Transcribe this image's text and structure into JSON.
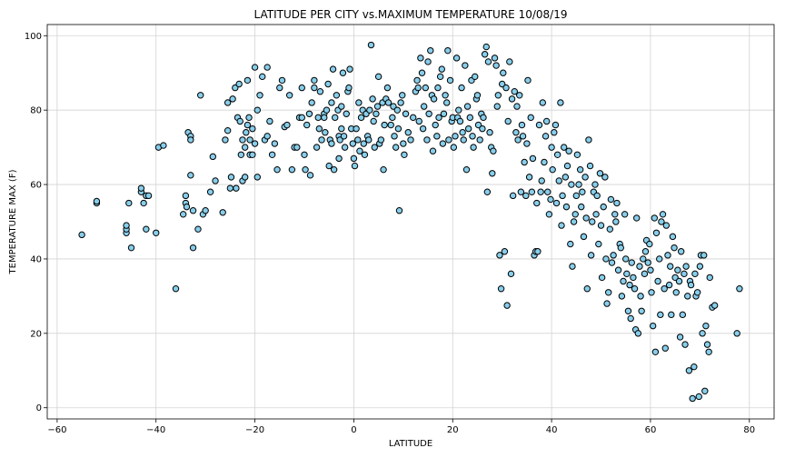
{
  "chart_data": {
    "type": "scatter",
    "title": "LATITUDE PER CITY vs.MAXIMUM TEMPERATURE 10/08/19",
    "xlabel": "LATITUDE",
    "ylabel": "TEMPERATURE MAX (F)",
    "xlim": [
      -62,
      85
    ],
    "ylim": [
      -3,
      103
    ],
    "xticks": [
      "−60",
      "−40",
      "−20",
      "0",
      "20",
      "40",
      "60",
      "80"
    ],
    "xtick_values": [
      -60,
      -40,
      -20,
      0,
      20,
      40,
      60,
      80
    ],
    "yticks": [
      "0",
      "20",
      "40",
      "60",
      "80",
      "100"
    ],
    "ytick_values": [
      0,
      20,
      40,
      60,
      80,
      100
    ],
    "grid": true,
    "marker_color": "#87CEEB",
    "marker_edge": "#000000",
    "points": [
      [
        -55,
        46.5
      ],
      [
        -52,
        55
      ],
      [
        -52,
        55.5
      ],
      [
        -46,
        47
      ],
      [
        -46,
        48
      ],
      [
        -46,
        49
      ],
      [
        -45.5,
        55
      ],
      [
        -45,
        43
      ],
      [
        -43,
        58
      ],
      [
        -43,
        59
      ],
      [
        -42.5,
        55
      ],
      [
        -42,
        48
      ],
      [
        -42,
        57
      ],
      [
        -41.5,
        57
      ],
      [
        -40,
        47
      ],
      [
        -39.5,
        70
      ],
      [
        -38.5,
        70.5
      ],
      [
        -36,
        32
      ],
      [
        -34.5,
        52
      ],
      [
        -34,
        57
      ],
      [
        -34,
        55
      ],
      [
        -33.8,
        54
      ],
      [
        -33.5,
        74
      ],
      [
        -33,
        73
      ],
      [
        -33,
        62.5
      ],
      [
        -33,
        72
      ],
      [
        -32.5,
        53
      ],
      [
        -32.5,
        43
      ],
      [
        -31.5,
        48
      ],
      [
        -31,
        84
      ],
      [
        -30.5,
        52
      ],
      [
        -30,
        53
      ],
      [
        -29,
        58
      ],
      [
        -28.5,
        67.5
      ],
      [
        -28,
        61
      ],
      [
        -26.5,
        52.5
      ],
      [
        -26,
        72
      ],
      [
        -25.5,
        74.5
      ],
      [
        -25.5,
        82
      ],
      [
        -25,
        59
      ],
      [
        -24.8,
        62
      ],
      [
        -24.5,
        83
      ],
      [
        -24,
        86
      ],
      [
        -23.8,
        59
      ],
      [
        -23.5,
        78
      ],
      [
        -23.2,
        87
      ],
      [
        -23,
        77
      ],
      [
        -22.8,
        68
      ],
      [
        -22.5,
        72
      ],
      [
        -22.5,
        61
      ],
      [
        -22,
        62
      ],
      [
        -22,
        70
      ],
      [
        -21.8,
        74
      ],
      [
        -21.5,
        76
      ],
      [
        -21.5,
        88
      ],
      [
        -21.2,
        78
      ],
      [
        -21,
        72
      ],
      [
        -21,
        68
      ],
      [
        -20.5,
        68
      ],
      [
        -20.5,
        75
      ],
      [
        -20,
        71
      ],
      [
        -20,
        91.5
      ],
      [
        -19.5,
        62
      ],
      [
        -19.5,
        80
      ],
      [
        -19,
        84
      ],
      [
        -18.5,
        89
      ],
      [
        -18,
        72
      ],
      [
        -17.5,
        73
      ],
      [
        -17.5,
        91.5
      ],
      [
        -17,
        77
      ],
      [
        -16.5,
        68
      ],
      [
        -16,
        71
      ],
      [
        -15.5,
        64
      ],
      [
        -15,
        86
      ],
      [
        -14.5,
        88
      ],
      [
        -14,
        75.5
      ],
      [
        -13.5,
        76
      ],
      [
        -13,
        84
      ],
      [
        -12.5,
        64
      ],
      [
        -12,
        70
      ],
      [
        -11.5,
        70
      ],
      [
        -11,
        78
      ],
      [
        -10.5,
        78
      ],
      [
        -10.5,
        86
      ],
      [
        -10,
        68
      ],
      [
        -9.8,
        64
      ],
      [
        -9.5,
        76
      ],
      [
        -9,
        79
      ],
      [
        -8.8,
        62.5
      ],
      [
        -8.5,
        82
      ],
      [
        -8,
        86
      ],
      [
        -8,
        88
      ],
      [
        -7.5,
        70
      ],
      [
        -7.2,
        78
      ],
      [
        -7,
        75
      ],
      [
        -6.8,
        85
      ],
      [
        -6.5,
        72
      ],
      [
        -6,
        79
      ],
      [
        -6,
        78
      ],
      [
        -5.8,
        74
      ],
      [
        -5.5,
        80
      ],
      [
        -5.2,
        87
      ],
      [
        -5,
        65
      ],
      [
        -4.8,
        72
      ],
      [
        -4.5,
        71
      ],
      [
        -4.5,
        82
      ],
      [
        -4.2,
        91
      ],
      [
        -4,
        64
      ],
      [
        -3.8,
        78
      ],
      [
        -3.5,
        84
      ],
      [
        -3.2,
        80
      ],
      [
        -3,
        73
      ],
      [
        -3,
        67
      ],
      [
        -2.8,
        72
      ],
      [
        -2.5,
        75
      ],
      [
        -2.5,
        81
      ],
      [
        -2.2,
        90
      ],
      [
        -2,
        73
      ],
      [
        -1.8,
        70
      ],
      [
        -1.5,
        79
      ],
      [
        -1.2,
        85
      ],
      [
        -1,
        86
      ],
      [
        -0.8,
        91
      ],
      [
        -0.5,
        75
      ],
      [
        -0.2,
        71
      ],
      [
        0,
        67
      ],
      [
        0.2,
        65
      ],
      [
        0.5,
        75
      ],
      [
        0.8,
        72
      ],
      [
        1,
        82
      ],
      [
        1.2,
        69
      ],
      [
        1.5,
        78
      ],
      [
        1.8,
        80
      ],
      [
        2,
        71
      ],
      [
        2.2,
        68
      ],
      [
        2.5,
        79
      ],
      [
        2.8,
        73
      ],
      [
        3,
        72
      ],
      [
        3.2,
        80
      ],
      [
        3.5,
        97.5
      ],
      [
        3.8,
        83
      ],
      [
        4,
        77
      ],
      [
        4.2,
        70
      ],
      [
        4.5,
        79
      ],
      [
        4.8,
        81
      ],
      [
        5,
        89
      ],
      [
        5.2,
        71
      ],
      [
        5.5,
        72
      ],
      [
        5.8,
        82
      ],
      [
        6,
        64
      ],
      [
        6.2,
        76
      ],
      [
        6.5,
        83
      ],
      [
        6.8,
        86
      ],
      [
        7,
        82
      ],
      [
        7.5,
        76
      ],
      [
        7.8,
        78
      ],
      [
        8,
        81
      ],
      [
        8.2,
        73
      ],
      [
        8.5,
        70
      ],
      [
        8.8,
        80
      ],
      [
        9,
        75
      ],
      [
        9.2,
        53
      ],
      [
        9.5,
        82
      ],
      [
        9.8,
        84
      ],
      [
        10,
        71
      ],
      [
        10.2,
        68
      ],
      [
        10.5,
        79
      ],
      [
        11,
        74
      ],
      [
        11.5,
        72
      ],
      [
        12,
        78
      ],
      [
        12.5,
        85
      ],
      [
        12.8,
        88
      ],
      [
        13,
        86
      ],
      [
        13.2,
        77
      ],
      [
        13.5,
        94
      ],
      [
        13.8,
        90
      ],
      [
        14,
        75
      ],
      [
        14.2,
        81
      ],
      [
        14.5,
        86
      ],
      [
        14.8,
        72
      ],
      [
        15,
        93
      ],
      [
        15.2,
        79
      ],
      [
        15.5,
        96
      ],
      [
        15.8,
        84
      ],
      [
        16,
        69
      ],
      [
        16.2,
        83
      ],
      [
        16.5,
        76
      ],
      [
        16.8,
        73
      ],
      [
        17,
        86
      ],
      [
        17.2,
        78
      ],
      [
        17.5,
        89
      ],
      [
        17.8,
        91
      ],
      [
        18,
        71
      ],
      [
        18.2,
        79
      ],
      [
        18.5,
        84
      ],
      [
        18.8,
        82
      ],
      [
        19,
        96
      ],
      [
        19.2,
        72
      ],
      [
        19.5,
        88
      ],
      [
        19.8,
        77
      ],
      [
        20,
        78
      ],
      [
        20.2,
        70
      ],
      [
        20.5,
        73
      ],
      [
        20.8,
        94
      ],
      [
        21,
        78
      ],
      [
        21.2,
        80
      ],
      [
        21.5,
        77
      ],
      [
        21.8,
        86
      ],
      [
        22,
        74
      ],
      [
        22.2,
        72
      ],
      [
        22.5,
        92
      ],
      [
        22.8,
        64
      ],
      [
        23,
        81
      ],
      [
        23.2,
        75
      ],
      [
        23.5,
        78
      ],
      [
        23.8,
        88
      ],
      [
        24,
        73
      ],
      [
        24.2,
        70
      ],
      [
        24.5,
        89
      ],
      [
        24.8,
        83
      ],
      [
        25,
        84
      ],
      [
        25.2,
        76
      ],
      [
        25.5,
        72
      ],
      [
        25.8,
        79
      ],
      [
        26,
        75
      ],
      [
        26.2,
        78
      ],
      [
        26.5,
        95
      ],
      [
        26.8,
        97
      ],
      [
        27,
        58
      ],
      [
        27.2,
        93
      ],
      [
        27.5,
        74
      ],
      [
        27.8,
        70
      ],
      [
        28,
        63
      ],
      [
        28.2,
        69
      ],
      [
        28.5,
        94
      ],
      [
        28.8,
        92
      ],
      [
        29,
        81
      ],
      [
        29.2,
        84
      ],
      [
        29.5,
        41
      ],
      [
        29.8,
        32
      ],
      [
        30,
        87
      ],
      [
        30.2,
        90
      ],
      [
        30.5,
        42
      ],
      [
        30.8,
        86
      ],
      [
        31,
        27.5
      ],
      [
        31.2,
        77
      ],
      [
        31.5,
        93
      ],
      [
        31.8,
        36
      ],
      [
        32,
        83
      ],
      [
        32.2,
        57
      ],
      [
        32.5,
        85
      ],
      [
        32.8,
        74
      ],
      [
        33,
        81
      ],
      [
        33.2,
        72
      ],
      [
        33.5,
        84
      ],
      [
        33.8,
        58
      ],
      [
        34,
        76
      ],
      [
        34.2,
        73
      ],
      [
        34.5,
        66
      ],
      [
        34.8,
        57
      ],
      [
        35,
        71
      ],
      [
        35.2,
        88
      ],
      [
        35.5,
        62
      ],
      [
        35.8,
        78
      ],
      [
        36,
        58
      ],
      [
        36.2,
        67
      ],
      [
        36.5,
        41
      ],
      [
        36.8,
        42
      ],
      [
        37,
        55
      ],
      [
        37.2,
        42
      ],
      [
        37.5,
        76
      ],
      [
        37.8,
        58
      ],
      [
        38,
        61
      ],
      [
        38.2,
        82
      ],
      [
        38.5,
        66
      ],
      [
        38.8,
        73
      ],
      [
        39,
        77
      ],
      [
        39.2,
        58
      ],
      [
        39.5,
        52
      ],
      [
        39.8,
        56
      ],
      [
        40,
        70
      ],
      [
        40.2,
        64
      ],
      [
        40.5,
        74
      ],
      [
        40.8,
        76
      ],
      [
        41,
        55
      ],
      [
        41.2,
        68
      ],
      [
        41.5,
        61
      ],
      [
        41.8,
        82
      ],
      [
        42,
        49
      ],
      [
        42.2,
        57
      ],
      [
        42.5,
        70
      ],
      [
        42.8,
        62
      ],
      [
        43,
        54
      ],
      [
        43.2,
        65
      ],
      [
        43.5,
        69
      ],
      [
        43.8,
        44
      ],
      [
        44,
        60
      ],
      [
        44.2,
        38
      ],
      [
        44.5,
        50
      ],
      [
        44.8,
        52
      ],
      [
        45,
        57
      ],
      [
        45.2,
        68
      ],
      [
        45.5,
        60
      ],
      [
        45.8,
        64
      ],
      [
        46,
        54
      ],
      [
        46.2,
        58
      ],
      [
        46.5,
        46
      ],
      [
        46.8,
        62
      ],
      [
        47,
        51
      ],
      [
        47.2,
        32
      ],
      [
        47.5,
        72
      ],
      [
        47.8,
        65
      ],
      [
        48,
        41
      ],
      [
        48.2,
        50
      ],
      [
        48.5,
        58
      ],
      [
        48.8,
        60
      ],
      [
        49,
        52
      ],
      [
        49.2,
        57
      ],
      [
        49.5,
        44
      ],
      [
        49.8,
        63
      ],
      [
        50,
        49
      ],
      [
        50.2,
        35
      ],
      [
        50.5,
        54
      ],
      [
        50.8,
        62
      ],
      [
        51,
        40
      ],
      [
        51.2,
        28
      ],
      [
        51.5,
        31
      ],
      [
        51.8,
        48
      ],
      [
        52,
        56
      ],
      [
        52.2,
        39
      ],
      [
        52.5,
        41
      ],
      [
        52.8,
        52
      ],
      [
        53,
        50
      ],
      [
        53.2,
        55
      ],
      [
        53.5,
        37
      ],
      [
        53.8,
        44
      ],
      [
        54,
        43
      ],
      [
        54.2,
        30
      ],
      [
        54.5,
        34
      ],
      [
        54.8,
        52
      ],
      [
        55,
        40
      ],
      [
        55.2,
        36
      ],
      [
        55.5,
        26
      ],
      [
        55.8,
        33
      ],
      [
        56,
        24
      ],
      [
        56.2,
        39
      ],
      [
        56.5,
        35
      ],
      [
        56.8,
        32
      ],
      [
        57,
        21
      ],
      [
        57.2,
        51
      ],
      [
        57.5,
        20
      ],
      [
        57.8,
        38
      ],
      [
        58,
        30
      ],
      [
        58.2,
        26
      ],
      [
        58.5,
        40
      ],
      [
        58.8,
        36
      ],
      [
        59,
        42
      ],
      [
        59.2,
        45
      ],
      [
        59.5,
        39
      ],
      [
        59.8,
        44
      ],
      [
        60,
        37
      ],
      [
        60.2,
        31
      ],
      [
        60.5,
        22
      ],
      [
        60.8,
        51
      ],
      [
        61,
        15
      ],
      [
        61.2,
        47
      ],
      [
        61.5,
        34
      ],
      [
        61.8,
        40
      ],
      [
        62,
        25
      ],
      [
        62.2,
        50
      ],
      [
        62.5,
        52
      ],
      [
        62.8,
        32
      ],
      [
        63,
        16
      ],
      [
        63.2,
        49
      ],
      [
        63.5,
        41
      ],
      [
        63.8,
        33
      ],
      [
        64,
        38
      ],
      [
        64.2,
        25
      ],
      [
        64.5,
        46
      ],
      [
        64.8,
        43
      ],
      [
        65,
        35
      ],
      [
        65.2,
        31
      ],
      [
        65.5,
        37
      ],
      [
        65.8,
        34
      ],
      [
        66,
        19
      ],
      [
        66.2,
        42
      ],
      [
        66.5,
        25
      ],
      [
        66.8,
        36
      ],
      [
        67,
        17
      ],
      [
        67.2,
        38
      ],
      [
        67.5,
        30
      ],
      [
        67.8,
        10
      ],
      [
        68,
        34
      ],
      [
        68.2,
        33
      ],
      [
        68.5,
        2.5
      ],
      [
        68.8,
        11
      ],
      [
        69,
        36
      ],
      [
        69.2,
        30
      ],
      [
        69.5,
        31
      ],
      [
        69.8,
        3
      ],
      [
        70,
        38
      ],
      [
        70.2,
        41
      ],
      [
        70.5,
        20
      ],
      [
        70.8,
        41
      ],
      [
        71,
        4.5
      ],
      [
        71.2,
        22
      ],
      [
        71.5,
        17
      ],
      [
        71.8,
        15
      ],
      [
        72,
        35
      ],
      [
        72.5,
        27
      ],
      [
        73,
        27.5
      ],
      [
        77.5,
        20
      ],
      [
        78,
        32
      ]
    ]
  }
}
